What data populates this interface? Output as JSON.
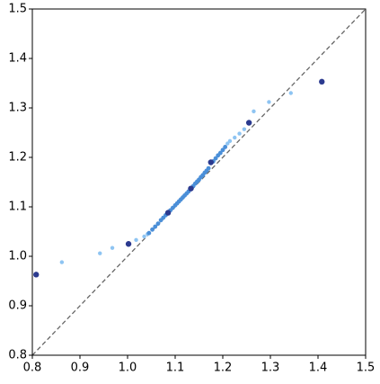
{
  "chart_data": {
    "type": "scatter",
    "xlim": [
      0.8,
      1.5
    ],
    "ylim": [
      0.8,
      1.5
    ],
    "xticks": [
      0.8,
      0.9,
      {
        "value": 1,
        "label": "1.0"
      },
      1.1,
      1.2,
      1.3,
      1.4,
      1.5
    ],
    "yticks": [
      0.8,
      0.9,
      {
        "value": 1,
        "label": "1.0"
      },
      1.1,
      1.2,
      1.3,
      1.4,
      1.5
    ],
    "diagonal": true,
    "series": [
      {
        "color": "#8ec4f2",
        "size": 2.2,
        "x": [
          0.862,
          0.942,
          0.968,
          1.018,
          1.035,
          1.042,
          1.21,
          1.215,
          1.225,
          1.235,
          1.245,
          1.265,
          1.297,
          1.343
        ],
        "y": [
          0.988,
          1.006,
          1.017,
          1.033,
          1.04,
          1.045,
          1.228,
          1.233,
          1.24,
          1.248,
          1.257,
          1.293,
          1.312,
          1.33
        ]
      },
      {
        "color": "#4b8fd8",
        "size": 2.4,
        "x": [
          1.045,
          1.052,
          1.058,
          1.064,
          1.07,
          1.075,
          1.08,
          1.09,
          1.095,
          1.1,
          1.104,
          1.108,
          1.112,
          1.116,
          1.12,
          1.124,
          1.128,
          1.138,
          1.142,
          1.146,
          1.15,
          1.154,
          1.158,
          1.162,
          1.166,
          1.17,
          1.18,
          1.185,
          1.19,
          1.195,
          1.2,
          1.205
        ],
        "y": [
          1.047,
          1.054,
          1.06,
          1.066,
          1.073,
          1.078,
          1.083,
          1.093,
          1.098,
          1.103,
          1.107,
          1.111,
          1.115,
          1.119,
          1.123,
          1.127,
          1.131,
          1.142,
          1.147,
          1.151,
          1.155,
          1.16,
          1.164,
          1.169,
          1.173,
          1.178,
          1.192,
          1.198,
          1.204,
          1.209,
          1.215,
          1.221
        ]
      },
      {
        "color": "#2b3a8f",
        "size": 3.2,
        "x": [
          0.808,
          1.002,
          1.085,
          1.133,
          1.175,
          1.255,
          1.408
        ],
        "y": [
          0.963,
          1.025,
          1.088,
          1.137,
          1.19,
          1.27,
          1.353
        ]
      }
    ]
  }
}
